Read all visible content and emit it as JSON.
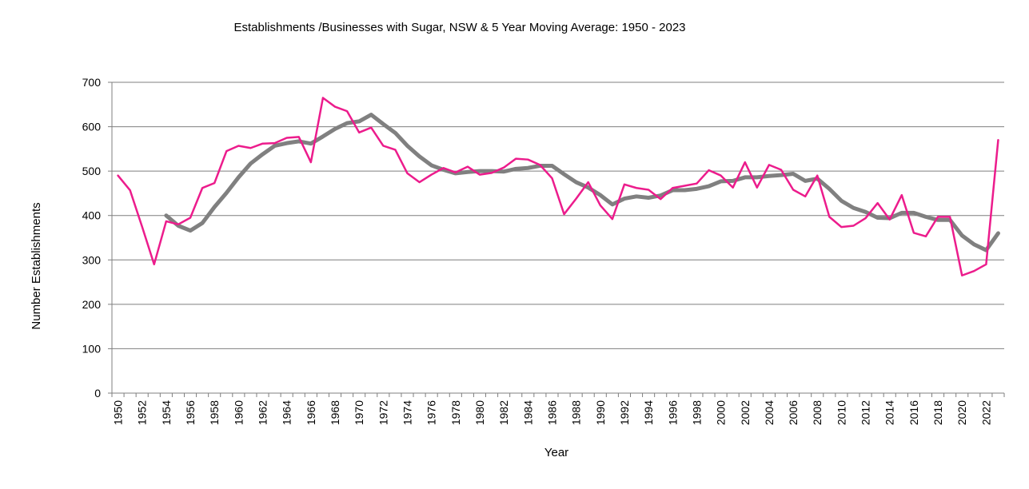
{
  "chart_data": {
    "type": "line",
    "title": "Establishments /Businesses  with Sugar, NSW & 5 Year Moving Average: 1950 - 2023",
    "xlabel": "Year",
    "ylabel": "Number Establishments",
    "ylim": [
      0,
      700
    ],
    "yticks": [
      0,
      100,
      200,
      300,
      400,
      500,
      600,
      700
    ],
    "xlim": [
      1950,
      2023
    ],
    "xtick_labels": [
      "1950",
      "1952",
      "1954",
      "1956",
      "1958",
      "1960",
      "1962",
      "1964",
      "1966",
      "1968",
      "1970",
      "1972",
      "1974",
      "1976",
      "1978",
      "1980",
      "1982",
      "1984",
      "1986",
      "1988",
      "1990",
      "1992",
      "1994",
      "1996",
      "1998",
      "2000",
      "2002",
      "2004",
      "2006",
      "2008",
      "2010",
      "2012",
      "2014",
      "2016",
      "2018",
      "2020",
      "2022"
    ],
    "grid": true,
    "series": [
      {
        "name": "Establishments",
        "color": "#ec1c8c",
        "start_year": 1950,
        "values": [
          490,
          457,
          375,
          290,
          387,
          380,
          395,
          462,
          473,
          545,
          557,
          552,
          562,
          563,
          575,
          577,
          520,
          665,
          645,
          635,
          587,
          598,
          557,
          548,
          495,
          475,
          492,
          507,
          497,
          510,
          492,
          496,
          508,
          528,
          526,
          514,
          484,
          403,
          438,
          475,
          423,
          392,
          470,
          462,
          458,
          437,
          462,
          467,
          472,
          502,
          490,
          463,
          520,
          463,
          514,
          503,
          458,
          443,
          490,
          397,
          374,
          377,
          394,
          428,
          391,
          446,
          361,
          353,
          397,
          397,
          265,
          275,
          290,
          570
        ]
      },
      {
        "name": "5 Year Moving Average",
        "color": "#808080",
        "start_year": 1954,
        "values": [
          400,
          377,
          366,
          383,
          419,
          451,
          486,
          517,
          538,
          557,
          563,
          567,
          562,
          578,
          595,
          608,
          612,
          627,
          606,
          586,
          557,
          533,
          513,
          503,
          495,
          498,
          500,
          500,
          499,
          505,
          507,
          512,
          512,
          493,
          475,
          463,
          446,
          425,
          438,
          443,
          440,
          445,
          457,
          457,
          460,
          466,
          477,
          478,
          486,
          486,
          489,
          491,
          494,
          478,
          483,
          460,
          433,
          417,
          408,
          395,
          394,
          406,
          406,
          397,
          390,
          390,
          355,
          335,
          322,
          360
        ]
      }
    ]
  }
}
